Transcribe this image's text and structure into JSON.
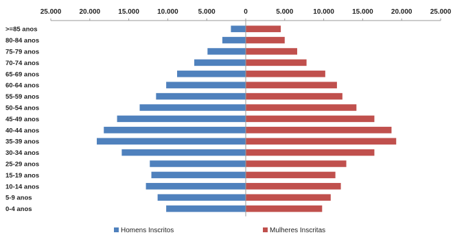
{
  "chart_data": {
    "type": "bar",
    "orientation": "horizontal",
    "style": "population-pyramid",
    "categories": [
      ">=85 anos",
      "80-84 anos",
      "75-79 anos",
      "70-74 anos",
      "65-69 anos",
      "60-64 anos",
      "55-59 anos",
      "50-54 anos",
      "45-49 anos",
      "40-44 anos",
      "35-39 anos",
      "30-34 anos",
      "25-29 anos",
      "15-19 anos",
      "10-14 anos",
      "5-9 anos",
      "0-4 anos"
    ],
    "series": [
      {
        "name": "Homens Inscritos",
        "color": "#4F81BD",
        "side": "left",
        "values": [
          1900,
          3000,
          4900,
          6600,
          8800,
          10200,
          11500,
          13600,
          16500,
          18200,
          19100,
          15900,
          12300,
          12100,
          12800,
          11300,
          10200
        ]
      },
      {
        "name": "Mulheres Inscritas",
        "color": "#C0504D",
        "side": "right",
        "values": [
          4500,
          5000,
          6600,
          7800,
          10200,
          11700,
          12400,
          14200,
          16500,
          18700,
          19300,
          16500,
          12900,
          11500,
          12200,
          10900,
          9800
        ]
      }
    ],
    "xlim": [
      -25000,
      25000
    ],
    "tick_labels": [
      "25.000",
      "20.000",
      "15.000",
      "10.000",
      "5.000",
      "0",
      "5.000",
      "10.000",
      "15.000",
      "20.000",
      "25.000"
    ],
    "legend_position": "bottom",
    "grid": false
  }
}
